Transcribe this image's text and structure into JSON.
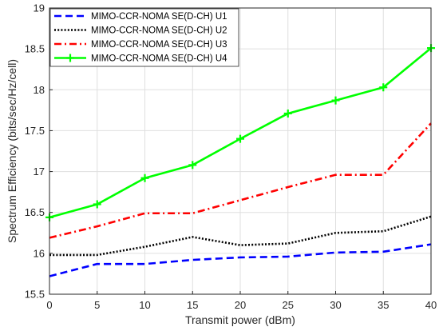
{
  "chart_data": {
    "type": "line",
    "title": "",
    "xlabel": "Transmit power (dBm)",
    "ylabel": "Spectrum Efficiency (bits/sec/Hz/cell)",
    "x": [
      0,
      5,
      10,
      15,
      20,
      25,
      30,
      35,
      40
    ],
    "xlim": [
      0,
      40
    ],
    "ylim": [
      15.5,
      19
    ],
    "xticks": [
      "0",
      "5",
      "10",
      "15",
      "20",
      "25",
      "30",
      "35",
      "40"
    ],
    "yticks": [
      "15.5",
      "16",
      "16.5",
      "17",
      "17.5",
      "18",
      "18.5",
      "19"
    ],
    "grid": true,
    "legend_position": "top-left",
    "series": [
      {
        "name": "MIMO-CCR-NOMA SE(D-CH) U1",
        "color": "#0000ff",
        "style": "dashed",
        "marker": "none",
        "values": [
          15.72,
          15.87,
          15.87,
          15.92,
          15.95,
          15.96,
          16.01,
          16.02,
          16.11
        ]
      },
      {
        "name": "MIMO-CCR-NOMA SE(D-CH) U2",
        "color": "#000000",
        "style": "dotted",
        "marker": "none",
        "values": [
          15.98,
          15.98,
          16.08,
          16.2,
          16.1,
          16.12,
          16.25,
          16.27,
          16.45
        ]
      },
      {
        "name": "MIMO-CCR-NOMA SE(D-CH) U3",
        "color": "#ff0000",
        "style": "dashdot",
        "marker": "none",
        "values": [
          16.19,
          16.33,
          16.49,
          16.49,
          16.65,
          16.81,
          16.96,
          16.96,
          17.59
        ]
      },
      {
        "name": "MIMO-CCR-NOMA SE(D-CH) U4",
        "color": "#00ff00",
        "style": "solid",
        "marker": "plus",
        "values": [
          16.44,
          16.6,
          16.92,
          17.08,
          17.4,
          17.71,
          17.87,
          18.03,
          18.51
        ]
      }
    ]
  }
}
